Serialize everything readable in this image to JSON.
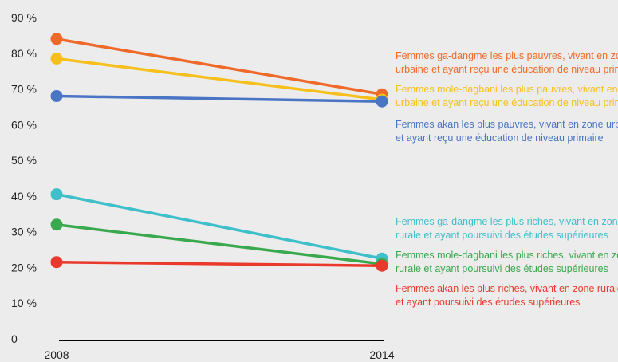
{
  "chart_data": {
    "type": "line",
    "title": "",
    "xlabel": "",
    "ylabel": "",
    "x": [
      "2008",
      "2014"
    ],
    "ylim": [
      0,
      90
    ],
    "yticks": [
      0,
      10,
      20,
      30,
      40,
      50,
      60,
      70,
      80,
      90
    ],
    "ytick_labels": [
      "0",
      "10 %",
      "20 %",
      "30 %",
      "40 %",
      "50 %",
      "60 %",
      "70 %",
      "80 %",
      "90 %"
    ],
    "grid": false,
    "legend_placement": "right",
    "series": [
      {
        "name_lines": [
          "Femmes ga-dangme les plus pauvres, vivant en zone",
          "urbaine et ayant reçu une éducation de niveau primaire"
        ],
        "values": [
          84,
          68.5
        ],
        "color": "#ef6a2a"
      },
      {
        "name_lines": [
          "Femmes mole-dagbani les plus pauvres, vivant en zone",
          "urbaine et ayant reçu une éducation de niveau primaire"
        ],
        "values": [
          78.5,
          67
        ],
        "color": "#f7bf1c"
      },
      {
        "name_lines": [
          "Femmes akan les plus pauvres, vivant en zone urbaine",
          "et ayant reçu une éducation de niveau primaire"
        ],
        "values": [
          68,
          66.5
        ],
        "color": "#4a74c4"
      },
      {
        "name_lines": [
          "Femmes ga-dangme les plus riches, vivant en zone",
          "rurale et ayant poursuivi des études supérieures"
        ],
        "values": [
          40.5,
          22.5
        ],
        "color": "#3ebfc9"
      },
      {
        "name_lines": [
          "Femmes mole-dagbani les plus riches, vivant en zone",
          "rurale et ayant poursuivi des études supérieures"
        ],
        "values": [
          32,
          21
        ],
        "color": "#3aa84c"
      },
      {
        "name_lines": [
          "Femmes akan les plus riches, vivant en zone rurale",
          "et ayant poursuivi des études supérieures"
        ],
        "values": [
          21.5,
          20.5
        ],
        "color": "#e8392c"
      }
    ]
  }
}
